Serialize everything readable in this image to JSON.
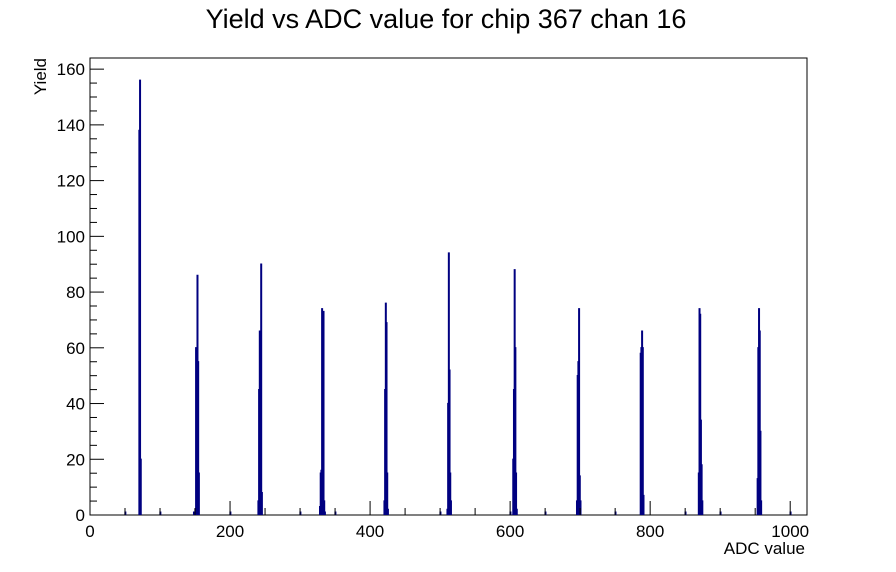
{
  "chart_data": {
    "type": "bar",
    "title": "Yield vs ADC value for chip 367 chan 16",
    "xlabel": "ADC value",
    "ylabel": "Yield",
    "xlim": [
      0,
      1024
    ],
    "ylim": [
      0,
      164
    ],
    "x_ticks": [
      0,
      200,
      400,
      600,
      800,
      1000
    ],
    "y_ticks": [
      0,
      20,
      40,
      60,
      80,
      100,
      120,
      140,
      160
    ],
    "grid": false,
    "legend": "none",
    "line_color": "#000080",
    "bin_width": 1,
    "series": [
      {
        "bins": [
          [
            50,
            1
          ],
          [
            70,
            138
          ],
          [
            71,
            156
          ],
          [
            72,
            20
          ],
          [
            100,
            1
          ],
          [
            148,
            1
          ],
          [
            150,
            2
          ],
          [
            151,
            60
          ],
          [
            152,
            55
          ],
          [
            153,
            86
          ],
          [
            154,
            55
          ],
          [
            155,
            15
          ],
          [
            200,
            1
          ],
          [
            240,
            5
          ],
          [
            241,
            45
          ],
          [
            242,
            66
          ],
          [
            243,
            40
          ],
          [
            244,
            90
          ],
          [
            245,
            8
          ],
          [
            300,
            1
          ],
          [
            328,
            3
          ],
          [
            329,
            15
          ],
          [
            330,
            16
          ],
          [
            331,
            74
          ],
          [
            332,
            54
          ],
          [
            333,
            73
          ],
          [
            334,
            5
          ],
          [
            335,
            1
          ],
          [
            350,
            1
          ],
          [
            420,
            5
          ],
          [
            421,
            45
          ],
          [
            422,
            76
          ],
          [
            423,
            69
          ],
          [
            424,
            15
          ],
          [
            425,
            2
          ],
          [
            500,
            1
          ],
          [
            510,
            2
          ],
          [
            511,
            40
          ],
          [
            512,
            94
          ],
          [
            513,
            52
          ],
          [
            514,
            15
          ],
          [
            515,
            5
          ],
          [
            600,
            1
          ],
          [
            604,
            20
          ],
          [
            605,
            45
          ],
          [
            606,
            88
          ],
          [
            607,
            60
          ],
          [
            608,
            15
          ],
          [
            609,
            2
          ],
          [
            650,
            1
          ],
          [
            695,
            5
          ],
          [
            696,
            50
          ],
          [
            697,
            55
          ],
          [
            698,
            74
          ],
          [
            699,
            14
          ],
          [
            700,
            5
          ],
          [
            750,
            1
          ],
          [
            786,
            58
          ],
          [
            787,
            60
          ],
          [
            788,
            66
          ],
          [
            789,
            60
          ],
          [
            790,
            7
          ],
          [
            850,
            1
          ],
          [
            869,
            15
          ],
          [
            870,
            74
          ],
          [
            871,
            72
          ],
          [
            872,
            34
          ],
          [
            873,
            18
          ],
          [
            874,
            5
          ],
          [
            900,
            1
          ],
          [
            953,
            13
          ],
          [
            954,
            60
          ],
          [
            955,
            74
          ],
          [
            956,
            66
          ],
          [
            957,
            30
          ],
          [
            958,
            5
          ],
          [
            1000,
            1
          ]
        ]
      }
    ]
  }
}
